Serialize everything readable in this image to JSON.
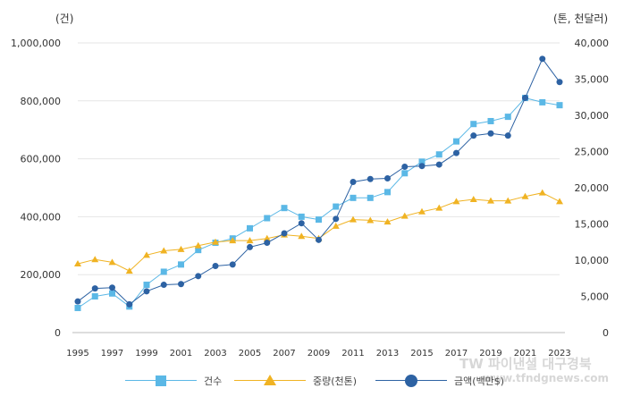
{
  "chart_data": {
    "type": "line",
    "x": [
      1995,
      1996,
      1997,
      1998,
      1999,
      2000,
      2001,
      2002,
      2003,
      2004,
      2005,
      2006,
      2007,
      2008,
      2009,
      2010,
      2011,
      2012,
      2013,
      2014,
      2015,
      2016,
      2017,
      2018,
      2019,
      2020,
      2021,
      2022,
      2023
    ],
    "x_tick_labels": [
      "1995",
      "1997",
      "1999",
      "2001",
      "2003",
      "2005",
      "2007",
      "2009",
      "2011",
      "2013",
      "2015",
      "2017",
      "2019",
      "2021",
      "2023"
    ],
    "y_left": {
      "unit_label": "(건)",
      "ticks": [
        "1,000,000",
        "800,000",
        "600,000",
        "400,000",
        "200,000",
        "0"
      ],
      "ylim": [
        0,
        1000000
      ]
    },
    "y_right": {
      "unit_label": "(톤, 천달러)",
      "ticks": [
        "40,000",
        "35,000",
        "30,000",
        "25,000",
        "20,000",
        "15,000",
        "10,000",
        "5,000",
        "0"
      ],
      "ylim": [
        0,
        40000
      ]
    },
    "series": [
      {
        "name": "건수",
        "axis": "left",
        "color": "#5bb8e6",
        "marker": "square",
        "values": [
          85000,
          125000,
          135000,
          90000,
          165000,
          210000,
          235000,
          285000,
          310000,
          325000,
          360000,
          395000,
          430000,
          400000,
          390000,
          435000,
          465000,
          465000,
          485000,
          550000,
          590000,
          615000,
          660000,
          720000,
          730000,
          745000,
          810000,
          795000,
          785000
        ]
      },
      {
        "name": "중량(천톤)",
        "axis": "right",
        "color": "#f0b323",
        "marker": "triangle",
        "values": [
          9500,
          10100,
          9700,
          8500,
          10700,
          11300,
          11500,
          12000,
          12500,
          12700,
          12700,
          13000,
          13500,
          13300,
          13000,
          14700,
          15600,
          15500,
          15300,
          16100,
          16700,
          17200,
          18100,
          18400,
          18200,
          18200,
          18800,
          19300,
          18100
        ]
      },
      {
        "name": "금액(백만$)",
        "axis": "right",
        "color": "#2d62a3",
        "marker": "circle",
        "values": [
          4300,
          6100,
          6200,
          3900,
          5700,
          6600,
          6700,
          7800,
          9200,
          9400,
          11800,
          12400,
          13700,
          15100,
          12800,
          15700,
          20800,
          21200,
          21300,
          22900,
          23000,
          23200,
          24800,
          27200,
          27500,
          27200,
          32400,
          37800,
          34600
        ]
      }
    ]
  },
  "watermark": {
    "line1": "TW 파이낸셜 대구경북",
    "line2": "www.tfndgnews.com"
  }
}
